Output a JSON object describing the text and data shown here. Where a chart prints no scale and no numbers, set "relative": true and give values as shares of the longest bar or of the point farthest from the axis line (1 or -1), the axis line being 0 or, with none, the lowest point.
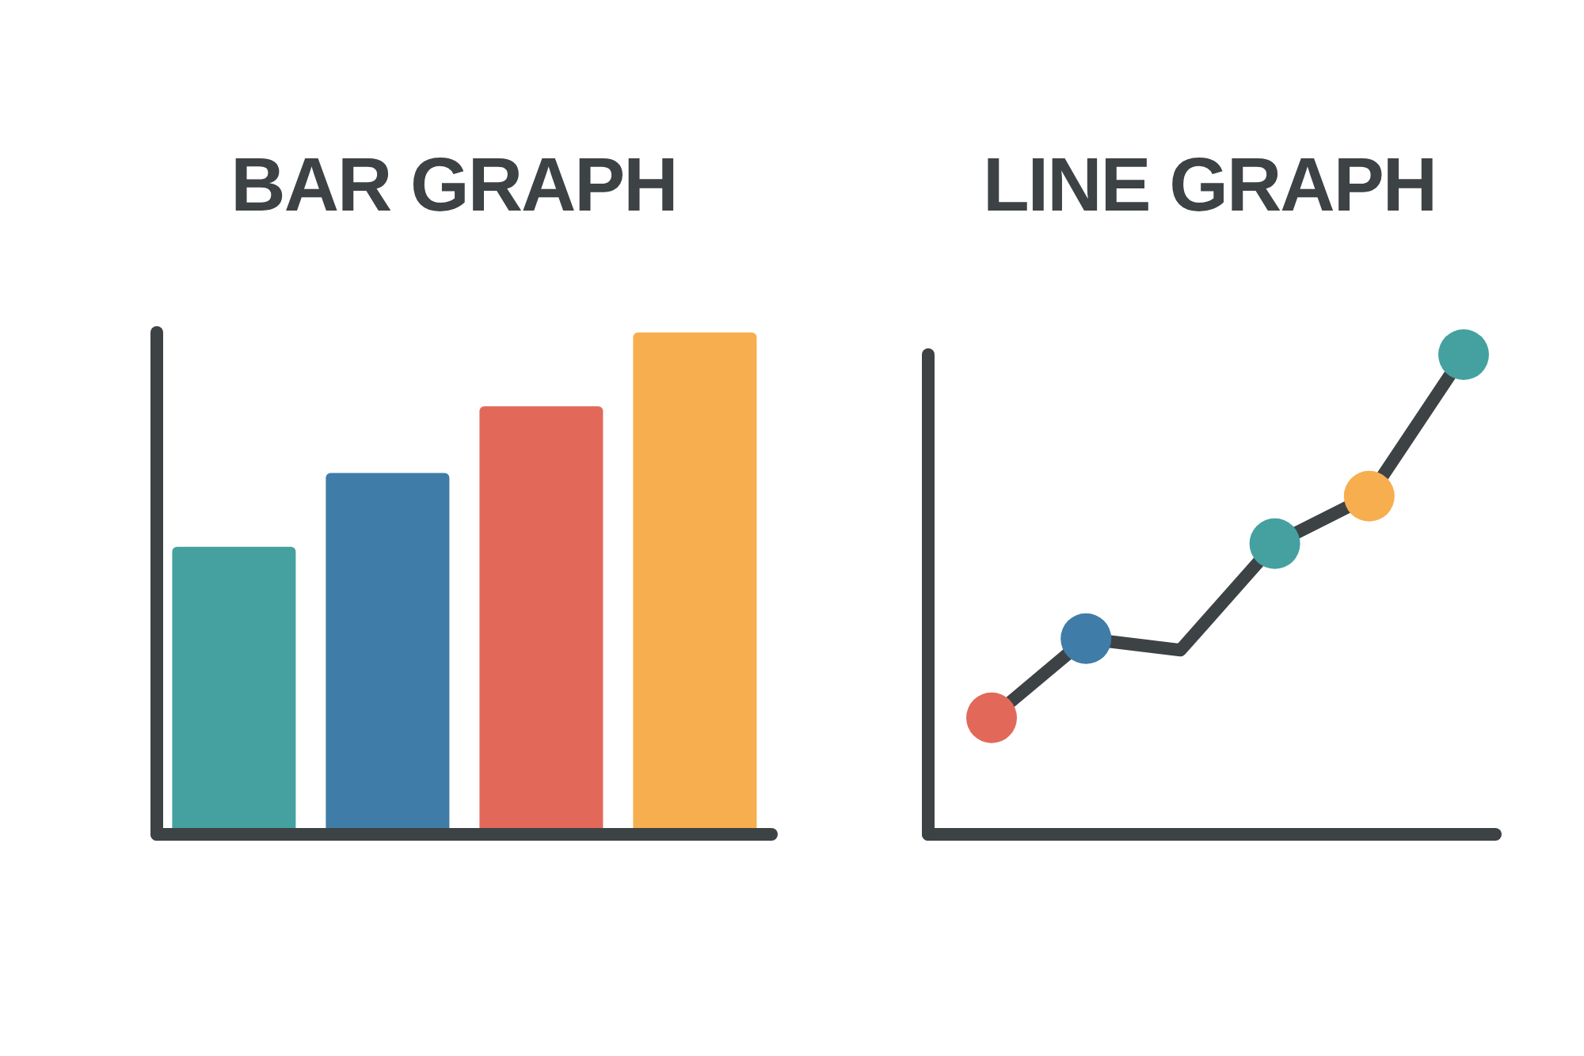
{
  "chart_data": [
    {
      "type": "bar",
      "title": "BAR GRAPH",
      "categories": [
        null,
        null,
        null,
        null
      ],
      "values": [
        0.573,
        0.72,
        0.853,
        1
      ],
      "colors": [
        "#45a19f",
        "#3f7ca8",
        "#e2695a",
        "#f6ae4e"
      ],
      "relative": true
    },
    {
      "type": "line",
      "title": "LINE GRAPH",
      "categories": [
        null,
        null,
        null,
        null,
        null,
        null
      ],
      "relative": true,
      "marker": "circle",
      "series": [
        {
          "color": "#3d4245",
          "values": [
            0.243,
            0.408,
            0.384,
            0.606,
            0.705,
            1
          ],
          "colors": [
            "#e2695a",
            "#3f7ca8",
            null,
            "#45a19f",
            "#f6ae4e",
            "#45a19f"
          ]
        }
      ]
    }
  ]
}
